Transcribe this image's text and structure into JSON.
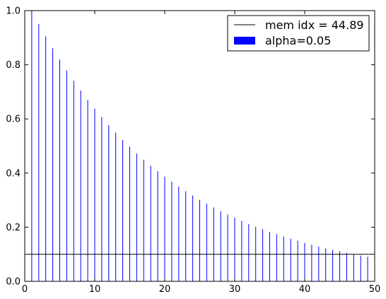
{
  "chart_data": {
    "type": "bar",
    "title": "",
    "xlabel": "",
    "ylabel": "",
    "xlim": [
      0,
      50
    ],
    "ylim": [
      0,
      1.0
    ],
    "x_ticks": [
      0,
      10,
      20,
      30,
      40,
      50
    ],
    "x_tick_labels": [
      "0",
      "10",
      "20",
      "30",
      "40",
      "50"
    ],
    "y_ticks": [
      0.0,
      0.2,
      0.4,
      0.6,
      0.8,
      1.0
    ],
    "y_tick_labels": [
      "0.0",
      "0.2",
      "0.4",
      "0.6",
      "0.8",
      "1.0"
    ],
    "grid": false,
    "legend_position": "top-right",
    "series": [
      {
        "name": "alpha=0.05",
        "color": "#0000ff",
        "x": [
          1,
          2,
          3,
          4,
          5,
          6,
          7,
          8,
          9,
          10,
          11,
          12,
          13,
          14,
          15,
          16,
          17,
          18,
          19,
          20,
          21,
          22,
          23,
          24,
          25,
          26,
          27,
          28,
          29,
          30,
          31,
          32,
          33,
          34,
          35,
          36,
          37,
          38,
          39,
          40,
          41,
          42,
          43,
          44,
          45,
          46,
          47,
          48,
          49,
          50
        ],
        "values": [
          1.0,
          0.951,
          0.905,
          0.861,
          0.819,
          0.779,
          0.741,
          0.705,
          0.67,
          0.638,
          0.607,
          0.577,
          0.549,
          0.522,
          0.497,
          0.472,
          0.449,
          0.427,
          0.407,
          0.387,
          0.368,
          0.35,
          0.333,
          0.317,
          0.301,
          0.287,
          0.273,
          0.259,
          0.247,
          0.235,
          0.223,
          0.212,
          0.202,
          0.192,
          0.183,
          0.174,
          0.165,
          0.157,
          0.15,
          0.142,
          0.135,
          0.129,
          0.122,
          0.116,
          0.111,
          0.105,
          0.1,
          0.095,
          0.091,
          0.086
        ]
      }
    ],
    "hline": {
      "name": "mem idx = 44.89",
      "y": 0.1,
      "color": "#000000"
    },
    "legend": [
      {
        "label": "mem idx = 44.89",
        "kind": "line",
        "color": "#000000"
      },
      {
        "label": "alpha=0.05",
        "kind": "patch",
        "color": "#0000ff"
      }
    ]
  }
}
